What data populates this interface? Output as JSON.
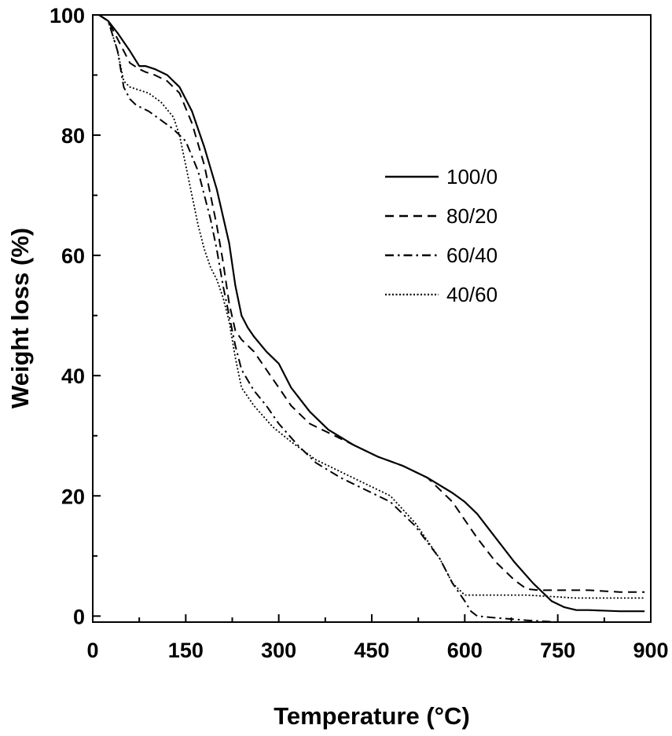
{
  "chart_data": {
    "type": "line",
    "title": "",
    "xlabel": "Temperature (°C)",
    "ylabel": "Weight loss (%)",
    "xlim": [
      0,
      900
    ],
    "ylim": [
      -1,
      100
    ],
    "xticks": [
      0,
      150,
      300,
      450,
      600,
      750,
      900
    ],
    "yticks": [
      0,
      20,
      40,
      60,
      80,
      100
    ],
    "grid": false,
    "legend_position": "right-center",
    "series": [
      {
        "name": "100/0",
        "dash": "solid",
        "x": [
          10,
          25,
          40,
          60,
          75,
          85,
          100,
          120,
          140,
          160,
          180,
          200,
          220,
          230,
          240,
          250,
          260,
          280,
          300,
          320,
          350,
          380,
          420,
          460,
          500,
          540,
          580,
          600,
          620,
          650,
          680,
          710,
          740,
          760,
          780,
          800,
          850,
          890
        ],
        "y": [
          100,
          99,
          97,
          94,
          91.5,
          91.5,
          91,
          90,
          88,
          84,
          78,
          71,
          62,
          55,
          50,
          48,
          46.5,
          44,
          42,
          38,
          34,
          31,
          28.5,
          26.5,
          25,
          23,
          20.5,
          19,
          17,
          13,
          9,
          5.5,
          2.5,
          1.5,
          1,
          1,
          0.8,
          0.8
        ]
      },
      {
        "name": "80/20",
        "dash": "dashed",
        "x": [
          10,
          25,
          40,
          60,
          75,
          85,
          100,
          120,
          140,
          160,
          180,
          200,
          210,
          220,
          230,
          240,
          260,
          280,
          300,
          320,
          350,
          380,
          420,
          460,
          500,
          540,
          580,
          600,
          620,
          650,
          680,
          700,
          720,
          740,
          760,
          800,
          850,
          890
        ],
        "y": [
          100,
          99,
          96,
          92,
          91,
          90.5,
          90,
          89,
          87,
          82,
          75,
          65,
          59,
          52,
          47.5,
          46,
          44,
          41,
          38,
          35,
          32,
          30.5,
          28.5,
          26.5,
          25,
          23,
          19,
          16,
          13,
          9,
          6,
          4.5,
          4.3,
          4.3,
          4.3,
          4.3,
          4,
          4
        ]
      },
      {
        "name": "60/40",
        "dash": "dashdot",
        "x": [
          10,
          25,
          40,
          50,
          60,
          70,
          90,
          110,
          130,
          150,
          170,
          190,
          200,
          210,
          220,
          230,
          240,
          260,
          280,
          300,
          330,
          360,
          400,
          440,
          480,
          520,
          560,
          580,
          600,
          610,
          620,
          650,
          700,
          750,
          800,
          890
        ],
        "y": [
          100,
          99,
          94,
          88,
          86,
          85,
          84,
          82.5,
          81,
          79,
          74,
          66,
          61,
          55,
          50,
          45,
          41,
          37.5,
          35,
          32,
          28.5,
          25.5,
          23,
          21,
          19,
          15,
          9.5,
          5.5,
          2.5,
          0.8,
          0,
          -0.3,
          -0.7,
          -1,
          -1,
          -1
        ]
      },
      {
        "name": "40/60",
        "dash": "dotted",
        "x": [
          10,
          25,
          40,
          50,
          60,
          75,
          90,
          110,
          130,
          140,
          150,
          160,
          170,
          180,
          190,
          200,
          210,
          220,
          230,
          240,
          260,
          290,
          320,
          360,
          400,
          440,
          480,
          520,
          560,
          580,
          600,
          620,
          700,
          780,
          890
        ],
        "y": [
          100,
          99,
          94,
          89,
          88,
          87.5,
          87,
          85.5,
          83,
          80,
          75,
          70,
          65,
          61,
          58,
          56,
          53,
          49,
          43,
          38,
          35,
          31.5,
          29,
          26,
          24,
          22,
          20,
          15.5,
          9.5,
          5.5,
          3.5,
          3.5,
          3.5,
          3,
          3
        ]
      }
    ]
  }
}
